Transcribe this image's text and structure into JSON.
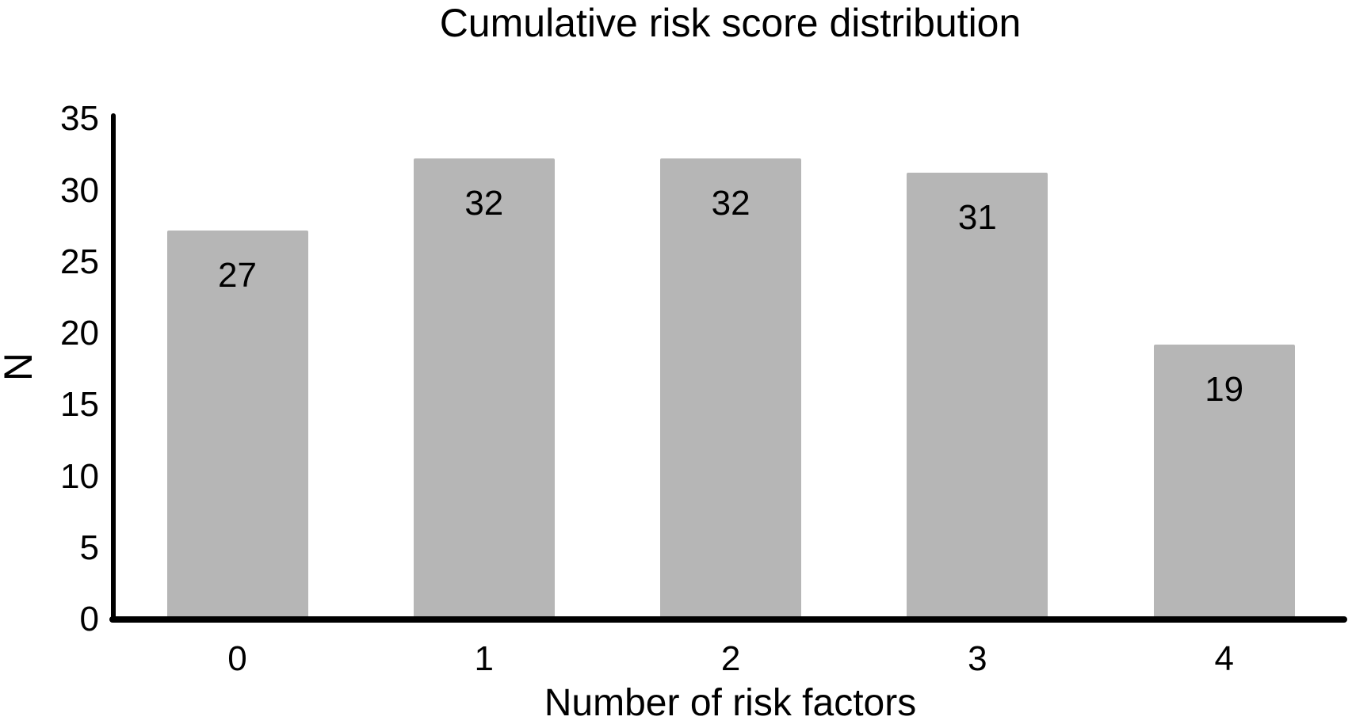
{
  "chart_data": {
    "type": "bar",
    "title": "Cumulative risk score distribution",
    "xlabel": "Number of risk factors",
    "ylabel": "N",
    "categories": [
      "0",
      "1",
      "2",
      "3",
      "4"
    ],
    "values": [
      27,
      32,
      32,
      31,
      19
    ],
    "series": [
      {
        "name": "N",
        "values": [
          27,
          32,
          32,
          31,
          19
        ]
      }
    ],
    "data_labels": [
      27,
      32,
      32,
      31,
      19
    ],
    "data_label_position": "inside-top",
    "ylim": [
      0,
      35
    ],
    "yticks": [
      0,
      5,
      10,
      15,
      20,
      25,
      30,
      35
    ],
    "grid": false,
    "legend": false,
    "bar_color": "#b6b6b6",
    "axis_color": "#000000",
    "text_color": "#000000",
    "background_color": "#ffffff"
  }
}
